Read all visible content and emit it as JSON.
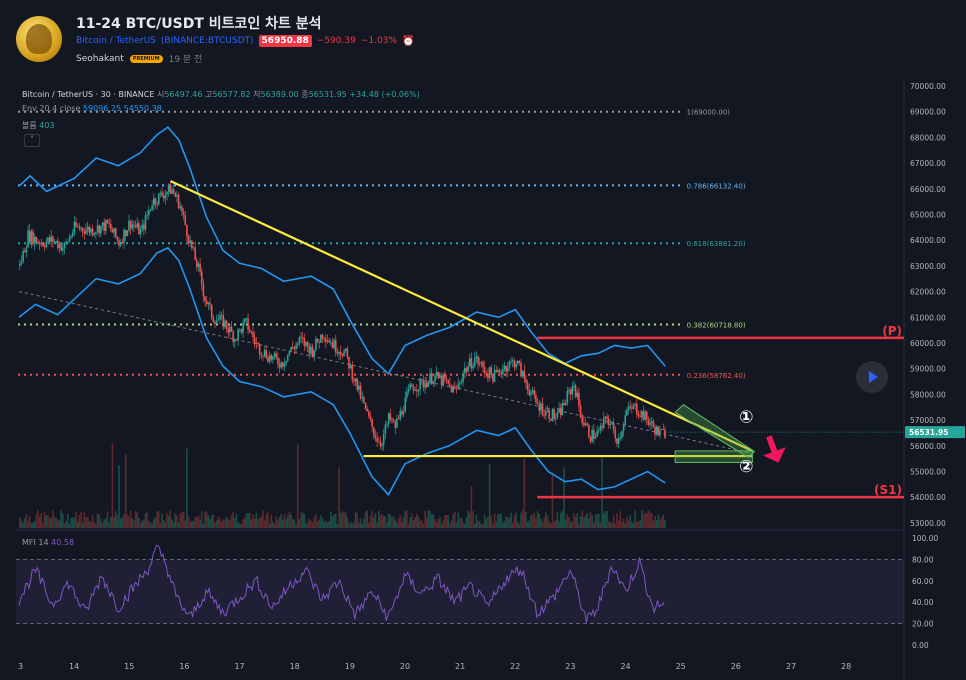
{
  "header": {
    "title": "11-24 BTC/USDT 비트코인 차트 분석",
    "symbol_name": "Bitcoin / TetherUS",
    "exchange_symbol": "(BINANCE:BTCUSDT)",
    "price": "56950.88",
    "change": "−590.39",
    "change_pct": "−1.03%",
    "author": "Seohakant",
    "author_badge": "PREMIUM",
    "time_ago": "19 분 전"
  },
  "legend": {
    "main_symbol": "Bitcoin / TetherUS · 30 · BINANCE",
    "open_label": "시",
    "open": "56497.46",
    "high_label": "고",
    "high": "56577.82",
    "low_label": "저",
    "low": "56389.00",
    "close_label": "종",
    "close": "56531.95",
    "change": "+34.48 (+0.06%)",
    "env_label": "Env 20.4 close",
    "env_upper": "59096.25",
    "env_lower": "54550.38",
    "volume_label": "볼륨",
    "volume": "403",
    "collapse_icon": "chevron-up-icon",
    "mfi_label": "MFI 14",
    "mfi_value": "40.58"
  },
  "colors": {
    "background": "#131722",
    "up": "#26a69a",
    "down": "#ef5350",
    "envelope": "#2196f3",
    "trendline": "#ffeb3b",
    "resistance": "#f23645",
    "mfi_line": "#7e57c2",
    "fib_1": "#9598a1",
    "fib_786": "#64b5f6",
    "fib_618": "#26a69a",
    "fib_382": "#aed581",
    "fib_236": "#ef5350",
    "fib_0": "#9598a1"
  },
  "chart_data": {
    "type": "candlestick",
    "x_ticks": [
      "3",
      "14",
      "15",
      "16",
      "17",
      "18",
      "19",
      "20",
      "21",
      "22",
      "23",
      "24",
      "25",
      "26",
      "27",
      "28"
    ],
    "y_ticks": [
      "70000.00",
      "69000.00",
      "68000.00",
      "67000.00",
      "66000.00",
      "65000.00",
      "64000.00",
      "63000.00",
      "62000.00",
      "61000.00",
      "60000.00",
      "59000.00",
      "58000.00",
      "57000.00",
      "56000.00",
      "55000.00",
      "54000.00",
      "53000.00"
    ],
    "ylim": [
      52800,
      70000
    ],
    "last_price": "56531.95",
    "price_path": [
      [
        13.0,
        63000
      ],
      [
        13.15,
        64200
      ],
      [
        13.4,
        63900
      ],
      [
        13.6,
        64000
      ],
      [
        13.8,
        63700
      ],
      [
        14.0,
        64500
      ],
      [
        14.3,
        64400
      ],
      [
        14.6,
        64600
      ],
      [
        14.8,
        63900
      ],
      [
        15.0,
        64700
      ],
      [
        15.2,
        64300
      ],
      [
        15.4,
        65500
      ],
      [
        15.6,
        65800
      ],
      [
        15.75,
        66000
      ],
      [
        15.9,
        65400
      ],
      [
        16.1,
        63800
      ],
      [
        16.25,
        62800
      ],
      [
        16.35,
        61800
      ],
      [
        16.5,
        61000
      ],
      [
        16.7,
        60800
      ],
      [
        16.9,
        60200
      ],
      [
        17.1,
        60800
      ],
      [
        17.3,
        59900
      ],
      [
        17.5,
        59500
      ],
      [
        17.75,
        59200
      ],
      [
        17.9,
        59700
      ],
      [
        18.1,
        60100
      ],
      [
        18.3,
        59700
      ],
      [
        18.5,
        60400
      ],
      [
        18.7,
        59900
      ],
      [
        18.9,
        59600
      ],
      [
        19.1,
        58400
      ],
      [
        19.3,
        57200
      ],
      [
        19.45,
        56400
      ],
      [
        19.55,
        56100
      ],
      [
        19.7,
        57100
      ],
      [
        19.8,
        56700
      ],
      [
        19.95,
        57500
      ],
      [
        20.1,
        58300
      ],
      [
        20.3,
        58400
      ],
      [
        20.5,
        58700
      ],
      [
        20.7,
        58500
      ],
      [
        20.9,
        58100
      ],
      [
        21.05,
        58900
      ],
      [
        21.25,
        59400
      ],
      [
        21.45,
        58900
      ],
      [
        21.6,
        58700
      ],
      [
        21.8,
        59100
      ],
      [
        22.0,
        59300
      ],
      [
        22.15,
        58600
      ],
      [
        22.35,
        57700
      ],
      [
        22.55,
        57300
      ],
      [
        22.75,
        57100
      ],
      [
        22.95,
        58000
      ],
      [
        23.05,
        58400
      ],
      [
        23.2,
        57000
      ],
      [
        23.35,
        56400
      ],
      [
        23.5,
        56500
      ],
      [
        23.65,
        57100
      ],
      [
        23.85,
        56200
      ],
      [
        24.0,
        57300
      ],
      [
        24.15,
        57500
      ],
      [
        24.3,
        57200
      ],
      [
        24.5,
        56700
      ],
      [
        24.6,
        56450
      ],
      [
        24.72,
        56530
      ]
    ],
    "envelope_upper": [
      [
        13.0,
        66100
      ],
      [
        13.2,
        66500
      ],
      [
        13.5,
        65900
      ],
      [
        14.0,
        66400
      ],
      [
        14.4,
        67200
      ],
      [
        14.8,
        66900
      ],
      [
        15.2,
        67400
      ],
      [
        15.5,
        68100
      ],
      [
        15.7,
        68400
      ],
      [
        15.9,
        67900
      ],
      [
        16.1,
        66800
      ],
      [
        16.4,
        64900
      ],
      [
        16.7,
        63600
      ],
      [
        17.0,
        63100
      ],
      [
        17.4,
        62900
      ],
      [
        17.8,
        62400
      ],
      [
        18.3,
        62600
      ],
      [
        18.7,
        62100
      ],
      [
        19.0,
        60900
      ],
      [
        19.4,
        59400
      ],
      [
        19.7,
        58800
      ],
      [
        20.0,
        59900
      ],
      [
        20.4,
        60300
      ],
      [
        20.8,
        60600
      ],
      [
        21.3,
        61200
      ],
      [
        21.7,
        61000
      ],
      [
        22.0,
        61300
      ],
      [
        22.3,
        60400
      ],
      [
        22.6,
        59600
      ],
      [
        22.9,
        59200
      ],
      [
        23.2,
        59500
      ],
      [
        23.5,
        59600
      ],
      [
        23.8,
        59900
      ],
      [
        24.1,
        59800
      ],
      [
        24.4,
        59900
      ],
      [
        24.72,
        59100
      ]
    ],
    "envelope_lower": [
      [
        13.0,
        61000
      ],
      [
        13.3,
        61500
      ],
      [
        13.7,
        61100
      ],
      [
        14.0,
        61700
      ],
      [
        14.4,
        62500
      ],
      [
        14.8,
        62300
      ],
      [
        15.2,
        62700
      ],
      [
        15.5,
        63500
      ],
      [
        15.7,
        63700
      ],
      [
        15.9,
        63200
      ],
      [
        16.1,
        62100
      ],
      [
        16.4,
        60200
      ],
      [
        16.7,
        59100
      ],
      [
        17.0,
        58500
      ],
      [
        17.4,
        58300
      ],
      [
        17.8,
        57900
      ],
      [
        18.3,
        58100
      ],
      [
        18.7,
        57600
      ],
      [
        19.0,
        56500
      ],
      [
        19.4,
        54800
      ],
      [
        19.7,
        54100
      ],
      [
        20.0,
        55300
      ],
      [
        20.4,
        55700
      ],
      [
        20.8,
        56000
      ],
      [
        21.3,
        56600
      ],
      [
        21.7,
        56400
      ],
      [
        22.0,
        56700
      ],
      [
        22.3,
        55800
      ],
      [
        22.6,
        55000
      ],
      [
        22.9,
        54600
      ],
      [
        23.2,
        54700
      ],
      [
        23.5,
        54300
      ],
      [
        23.8,
        54400
      ],
      [
        24.1,
        54700
      ],
      [
        24.4,
        55000
      ],
      [
        24.72,
        54550
      ]
    ],
    "fib_levels": [
      {
        "label": "1(69000.00)",
        "value": 69000,
        "color_key": "fib_1"
      },
      {
        "label": "0.786(66132.40)",
        "value": 66132.4,
        "color_key": "fib_786"
      },
      {
        "label": "0.618(63881.20)",
        "value": 63881.2,
        "color_key": "fib_618"
      },
      {
        "label": "0.382(60718.80)",
        "value": 60718.8,
        "color_key": "fib_382"
      },
      {
        "label": "0.236(58762.40)",
        "value": 58762.4,
        "color_key": "fib_236"
      },
      {
        "label": "",
        "value": 55600,
        "color_key": "fib_0"
      }
    ],
    "resistance": {
      "label": "(P)",
      "value": 60200,
      "x_start": 22.4
    },
    "support": {
      "label": "(S1)",
      "value": 54000,
      "x_start": 22.4
    },
    "triangle": {
      "upper_start": [
        15.75,
        66300
      ],
      "upper_end": [
        26.3,
        55800
      ],
      "lower_start": [
        19.25,
        55600
      ],
      "lower_end": [
        26.3,
        55600
      ]
    },
    "annotations": [
      "①",
      "②"
    ],
    "mfi": {
      "ylim": [
        0,
        100
      ],
      "y_ticks": [
        "100.00",
        "80.00",
        "60.00",
        "40.00",
        "20.00",
        "0.00"
      ],
      "upper_band": 80,
      "lower_band": 20,
      "values": [
        [
          13.0,
          42
        ],
        [
          13.3,
          70
        ],
        [
          13.6,
          38
        ],
        [
          13.9,
          58
        ],
        [
          14.2,
          30
        ],
        [
          14.5,
          65
        ],
        [
          14.8,
          35
        ],
        [
          15.1,
          55
        ],
        [
          15.35,
          72
        ],
        [
          15.5,
          90
        ],
        [
          15.65,
          78
        ],
        [
          15.85,
          45
        ],
        [
          16.1,
          25
        ],
        [
          16.4,
          50
        ],
        [
          16.7,
          30
        ],
        [
          17.0,
          45
        ],
        [
          17.3,
          60
        ],
        [
          17.6,
          35
        ],
        [
          17.9,
          55
        ],
        [
          18.2,
          70
        ],
        [
          18.5,
          42
        ],
        [
          18.8,
          60
        ],
        [
          19.1,
          28
        ],
        [
          19.4,
          50
        ],
        [
          19.7,
          25
        ],
        [
          20.0,
          65
        ],
        [
          20.3,
          48
        ],
        [
          20.6,
          62
        ],
        [
          20.9,
          40
        ],
        [
          21.2,
          55
        ],
        [
          21.5,
          35
        ],
        [
          21.8,
          60
        ],
        [
          22.1,
          72
        ],
        [
          22.4,
          30
        ],
        [
          22.7,
          45
        ],
        [
          23.0,
          70
        ],
        [
          23.3,
          22
        ],
        [
          23.5,
          35
        ],
        [
          23.75,
          75
        ],
        [
          24.0,
          50
        ],
        [
          24.25,
          78
        ],
        [
          24.5,
          34
        ],
        [
          24.72,
          40.58
        ]
      ]
    }
  }
}
